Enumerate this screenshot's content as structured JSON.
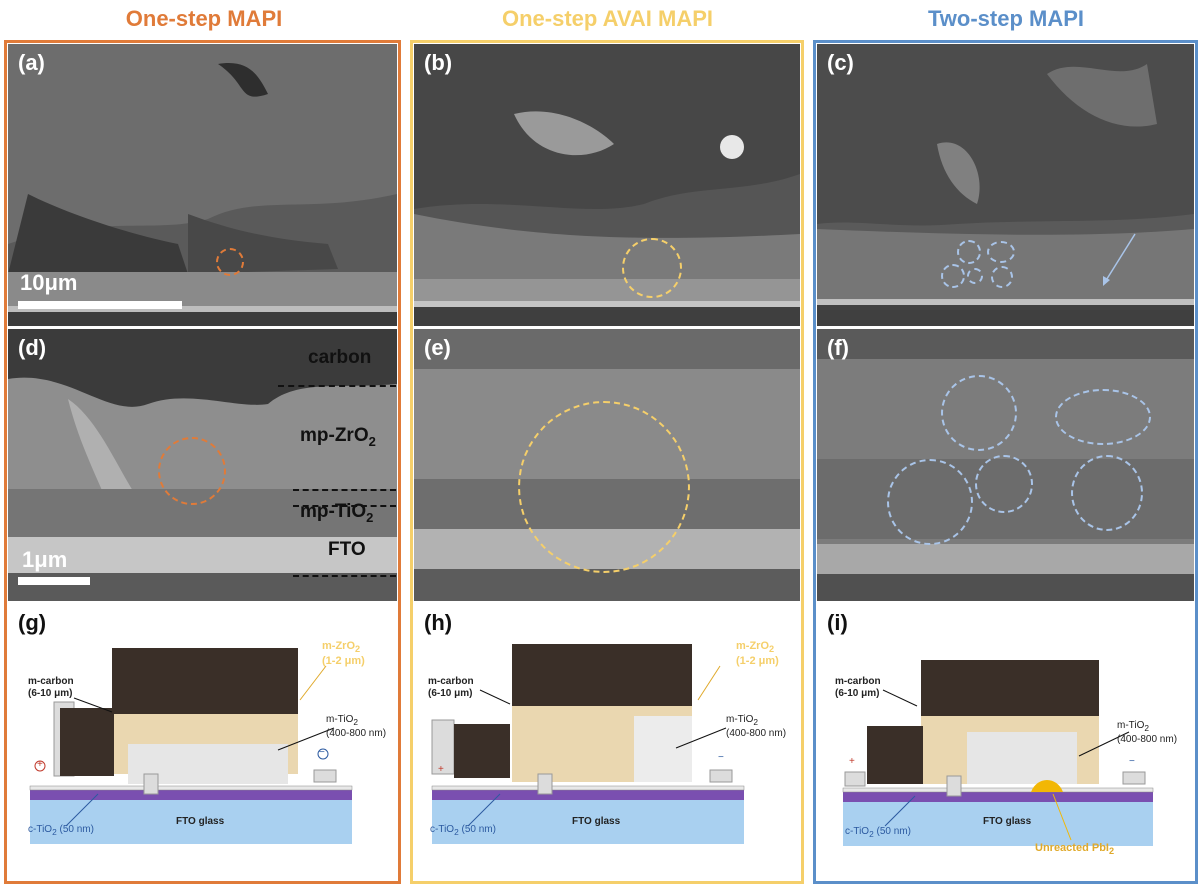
{
  "colors": {
    "orange": "#e07b39",
    "yellow": "#f5cf6a",
    "blue": "#5b8fc9",
    "light_blue_circle": "#a9c4e8"
  },
  "columns": [
    {
      "title": "One-step MAPI"
    },
    {
      "title": "One-step AVAI MAPI"
    },
    {
      "title": "Two-step MAPI"
    }
  ],
  "panels": {
    "a": "(a)",
    "b": "(b)",
    "c": "(c)",
    "d": "(d)",
    "e": "(e)",
    "f": "(f)",
    "g": "(g)",
    "h": "(h)",
    "i": "(i)"
  },
  "scale": {
    "top": "10μm",
    "bottom": "1μm"
  },
  "layers": {
    "carbon": "carbon",
    "zro2_base": "mp-ZrO",
    "tio2_base": "mp-TiO",
    "sub2": "2",
    "fto": "FTO"
  },
  "schematic": {
    "carbon_line1": "m-carbon",
    "carbon_line2": "(6-10 μm)",
    "zro2_line1": "m-ZrO",
    "zro2_line2": "(1-2 μm)",
    "tio2_line1": "m-TiO",
    "tio2_line2": "(400-800 nm)",
    "sub2": "2",
    "ctio2": "c-TiO",
    "ctio2_tail": " (50 nm)",
    "fto_glass": "FTO glass",
    "unreacted": "Unreacted PbI",
    "plus": "+",
    "minus": "−"
  }
}
